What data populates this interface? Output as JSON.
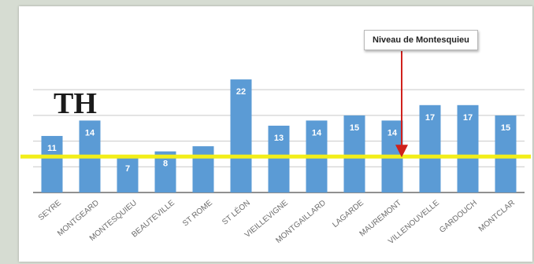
{
  "chart_data": {
    "type": "bar",
    "title": "TH",
    "categories": [
      "SEYRE",
      "MONTGEARD",
      "MONTESQUIEU",
      "BEAUTEVILLE",
      "ST ROME",
      "ST LÉON",
      "VIEILLEVIGNE",
      "MONTGAILLARD",
      "LAGARDE",
      "MAUREMONT",
      "VILLENOUVELLE",
      "GARDOUCH",
      "MONTCLAR"
    ],
    "values": [
      11,
      14,
      7,
      8,
      9,
      22,
      13,
      14,
      15,
      14,
      17,
      17,
      15
    ],
    "value_labels": [
      "11",
      "14",
      "7",
      "8",
      "",
      "22",
      "13",
      "14",
      "15",
      "14",
      "17",
      "17",
      "15"
    ],
    "reference_line": {
      "value": 7,
      "color": "#f2ee1a"
    },
    "annotation": {
      "text": "Niveau de Montesquieu",
      "arrow_color": "#d0211c"
    },
    "ylim": [
      0,
      24
    ],
    "gridlines": [
      5,
      10,
      15,
      20
    ],
    "bar_color": "#5b9bd5",
    "grid": true
  }
}
